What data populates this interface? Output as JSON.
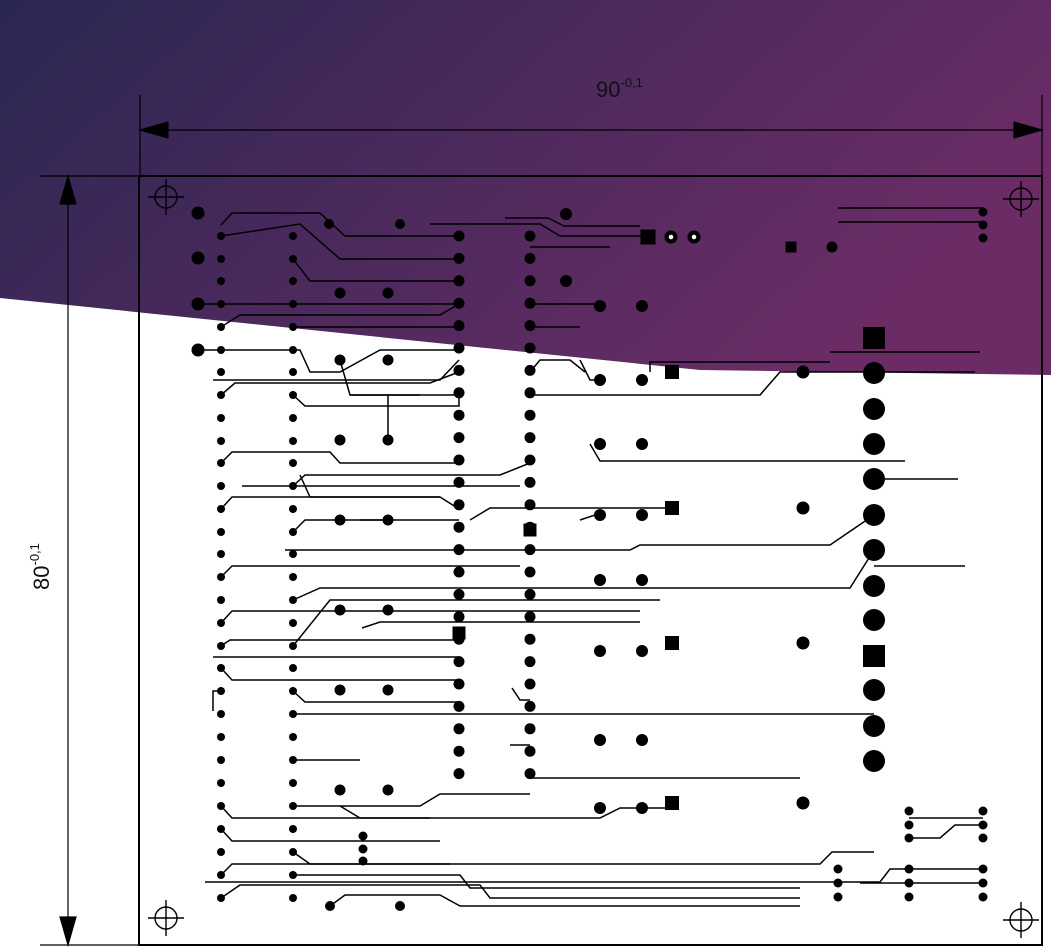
{
  "drawing": {
    "width_dimension": {
      "value": "90",
      "tolerance": "-0,1"
    },
    "height_dimension": {
      "value": "80",
      "tolerance": "-0,1"
    }
  },
  "colors": {
    "banner_start": "#2a2752",
    "banner_end": "#6b2c66",
    "ink": "#000000"
  },
  "icons": [
    "crosshair-mount-hole-icon",
    "arrowhead-icon"
  ]
}
